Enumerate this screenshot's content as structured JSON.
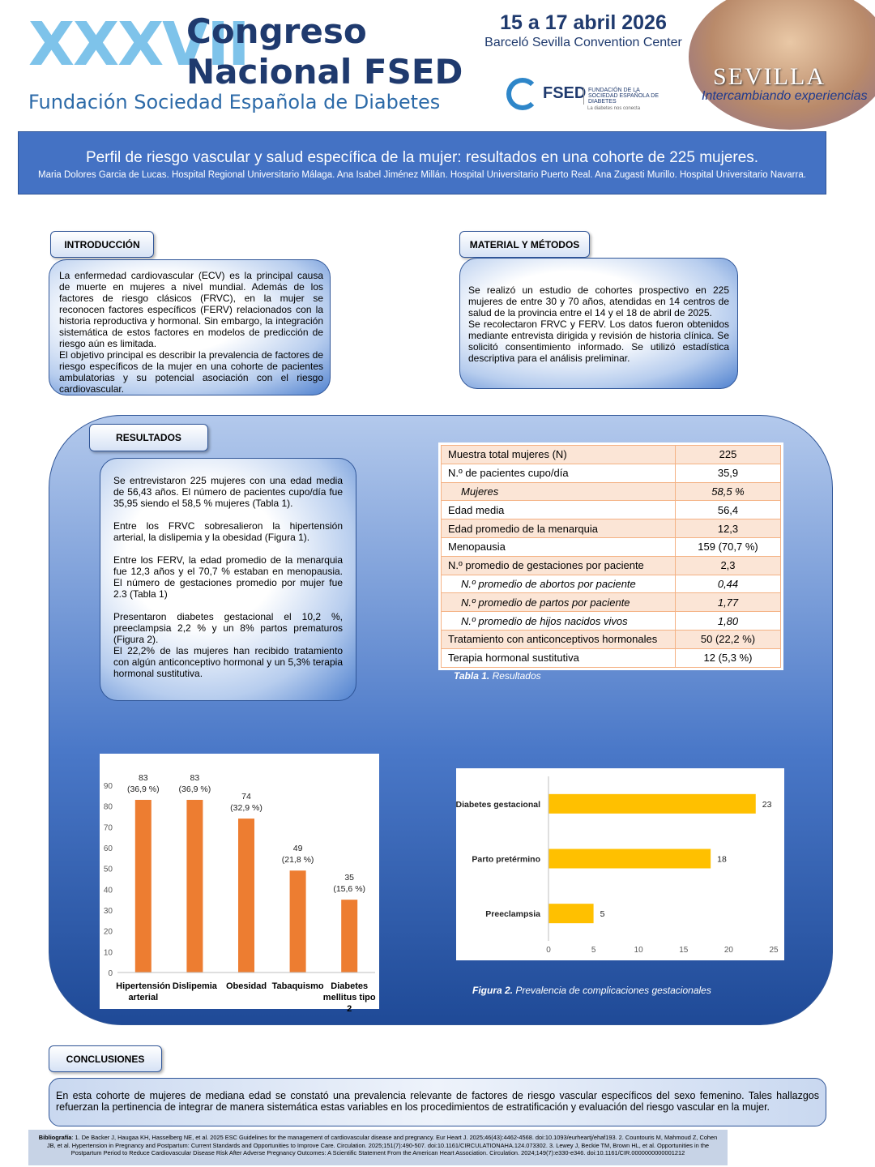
{
  "header": {
    "edition": "XXXVII",
    "congress_line1": "Congreso",
    "congress_line2": "Nacional FSED",
    "foundation": "Fundación Sociedad Española de Diabetes",
    "dates": "15 a 17 abril 2026",
    "venue": "Barceló Sevilla Convention Center",
    "logo_acronym": "FSED",
    "logo_name": "FUNDACIÓN DE LA SOCIEDAD ESPAÑOLA DE DIABETES",
    "logo_tagline": "La diabetes nos conecta",
    "city": "Sevilla",
    "slogan": "Intercambiando experiencias"
  },
  "title": "Perfil de riesgo vascular y salud específica de la mujer: resultados en una cohorte de 225 mujeres.",
  "authors": "Maria Dolores Garcia de Lucas. Hospital Regional Universitario Málaga.  Ana Isabel Jiménez Millán. Hospital Universitario Puerto Real. Ana Zugasti Murillo. Hospital Universitario Navarra.",
  "introduction": {
    "heading": "INTRODUCCIÓN",
    "paragraphs": [
      "La enfermedad cardiovascular (ECV) es la principal causa de muerte en mujeres a nivel mundial. Además de los factores de riesgo clásicos (FRVC), en la mujer se reconocen factores específicos (FERV) relacionados con la historia reproductiva y hormonal. Sin embargo, la integración sistemática de estos factores en modelos de predicción de riesgo aún es limitada.",
      "El objetivo principal es describir la prevalencia de factores de riesgo específicos de la mujer en una cohorte de pacientes ambulatorias y su potencial asociación con el riesgo cardiovascular."
    ]
  },
  "methods": {
    "heading": "MATERIAL Y MÉTODOS",
    "paragraphs": [
      "Se realizó un estudio de cohortes prospectivo en 225 mujeres de entre 30 y 70 años, atendidas en 14 centros de salud de la provincia entre el 14 y el 18 de abril de 2025.",
      "Se recolectaron FRVC y FERV. Los datos fueron obtenidos mediante entrevista dirigida y revisión de historia clínica. Se solicitó consentimiento informado. Se utilizó estadística descriptiva para el análisis preliminar."
    ]
  },
  "results": {
    "heading": "RESULTADOS",
    "paragraphs": [
      "Se entrevistaron 225 mujeres con una edad media de 56,43 años. El número de pacientes cupo/día fue 35,95 siendo el 58,5 % mujeres (Tabla 1).",
      "Entre los FRVC sobresalieron la hipertensión arterial, la dislipemia y la obesidad (Figura 1).",
      "Entre los FERV, la edad promedio de la menarquia fue 12,3 años y el 70,7 % estaban en menopausia. El número de gestaciones promedio por mujer fue 2.3 (Tabla 1)",
      "Presentaron diabetes gestacional el 10,2 %, preeclampsia 2,2 % y un 8% partos prematuros (Figura 2).",
      "El 22,2% de las mujeres han recibido tratamiento con algún anticonceptivo hormonal y un 5,3% terapia hormonal sustitutiva."
    ]
  },
  "table": {
    "rows": [
      {
        "label": "Muestra total mujeres (N)",
        "value": "225"
      },
      {
        "label": "N.º de pacientes cupo/día",
        "value": "35,9"
      },
      {
        "label": "Mujeres",
        "value": "58,5 %",
        "sub": true
      },
      {
        "label": "Edad media",
        "value": "56,4"
      },
      {
        "label": "Edad promedio de la menarquia",
        "value": "12,3"
      },
      {
        "label": "Menopausia",
        "value": "159 (70,7 %)"
      },
      {
        "label": "N.º promedio de gestaciones por paciente",
        "value": "2,3"
      },
      {
        "label": "N.º promedio de abortos por paciente",
        "value": "0,44",
        "sub": true
      },
      {
        "label": "N.º promedio de partos por paciente",
        "value": "1,77",
        "sub": true
      },
      {
        "label": "N.º promedio de hijos nacidos vivos",
        "value": "1,80",
        "sub": true
      },
      {
        "label": "Tratamiento con anticonceptivos hormonales",
        "value": "50 (22,2 %)"
      },
      {
        "label": "Terapia hormonal sustitutiva",
        "value": "12 (5,3 %)"
      }
    ],
    "caption_label": "Tabla 1.",
    "caption": "Resultados"
  },
  "chart_data": [
    {
      "type": "bar",
      "categories": [
        "Hipertensión arterial",
        "Dislipemia",
        "Obesidad",
        "Tabaquismo",
        "Diabetes mellitus tipo 2"
      ],
      "values": [
        83,
        83,
        74,
        49,
        35
      ],
      "value_labels": [
        [
          "83",
          "(36,9 %)"
        ],
        [
          "83",
          "(36,9 %)"
        ],
        [
          "74",
          "(32,9 %)"
        ],
        [
          "49",
          "(21,8 %)"
        ],
        [
          "35",
          "(15,6 %)"
        ]
      ],
      "color": "#ED7D31",
      "ylim": [
        0,
        90
      ],
      "yticks": [
        0,
        10,
        20,
        30,
        40,
        50,
        60,
        70,
        80,
        90
      ],
      "grid": false,
      "caption_label": "Figura 1.",
      "caption": "Prevalencia de factores de riesgo vascular clásicos"
    },
    {
      "type": "hbar",
      "categories": [
        "Diabetes gestacional",
        "Parto pretérmino",
        "Preeclampsia"
      ],
      "values": [
        23,
        18,
        5
      ],
      "color": "#FFC000",
      "xlim": [
        0,
        25
      ],
      "xticks": [
        0,
        5,
        10,
        15,
        20,
        25
      ],
      "grid": false,
      "caption_label": "Figura 2.",
      "caption": "Prevalencia de complicaciones gestacionales"
    }
  ],
  "conclusions": {
    "heading": "CONCLUSIONES",
    "text": "En esta cohorte de mujeres de mediana edad se constató una prevalencia relevante de factores de riesgo vascular específicos del sexo femenino. Tales hallazgos refuerzan la pertinencia de integrar de manera sistemática estas variables en los procedimientos de estratificación y evaluación del riesgo vascular en la mujer."
  },
  "bibliography": {
    "label": "Bibliografía",
    "text": ": 1. De Backer J, Haugaa KH, Hasselberg NE, et al. 2025 ESC Guidelines for the management of cardiovascular disease and pregnancy. Eur Heart J. 2025;46(43):4462-4568. doi:10.1093/eurheartj/ehaf193. 2. Countouris M, Mahmoud Z, Cohen JB, et al. Hypertension in Pregnancy and Postpartum: Current Standards and Opportunities to Improve Care. Circulation. 2025;151(7):490-507. doi:10.1161/CIRCULATIONAHA.124.073302. 3. Lewey J, Beckie TM, Brown HL, et al. Opportunities in the Postpartum Period to Reduce Cardiovascular Disease Risk After Adverse Pregnancy Outcomes: A Scientific Statement From the American Heart Association. Circulation. 2024;149(7):e330-e346. doi:10.1161/CIR.0000000000001212"
  }
}
